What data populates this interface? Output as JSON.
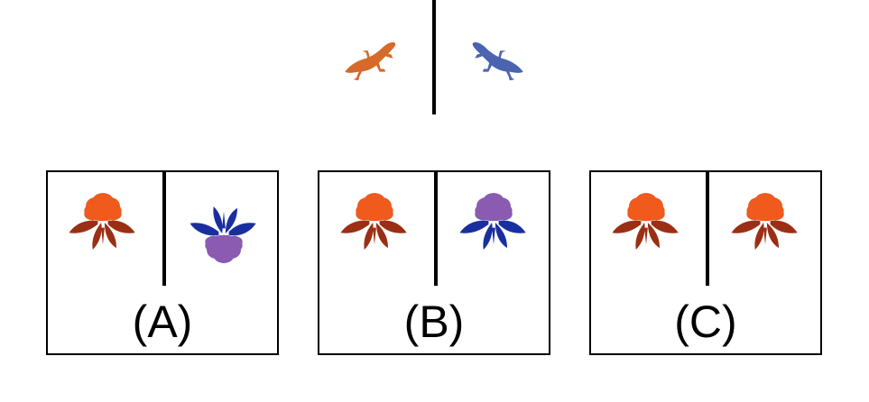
{
  "colors": {
    "lizard_left": "#d56a2a",
    "lizard_right": "#4a64b0",
    "flower_red_petals": "#f05a1c",
    "flower_red_leaves": "#9a2f14",
    "flower_purple_petals": "#8a5bb0",
    "flower_purple_leaves": "#1a2f9f",
    "line": "#000000"
  },
  "prompt": {
    "left_icon": "lizard-icon",
    "right_icon": "lizard-icon"
  },
  "options": [
    {
      "label": "(A)",
      "left_icon": "red-flower-icon",
      "right_icon": "purple-flower-icon",
      "right_orientation": "upside-down"
    },
    {
      "label": "(B)",
      "left_icon": "red-flower-icon",
      "right_icon": "purple-flower-icon",
      "right_orientation": "upright"
    },
    {
      "label": "(C)",
      "left_icon": "red-flower-icon",
      "right_icon": "red-flower-icon",
      "right_orientation": "upright"
    }
  ]
}
